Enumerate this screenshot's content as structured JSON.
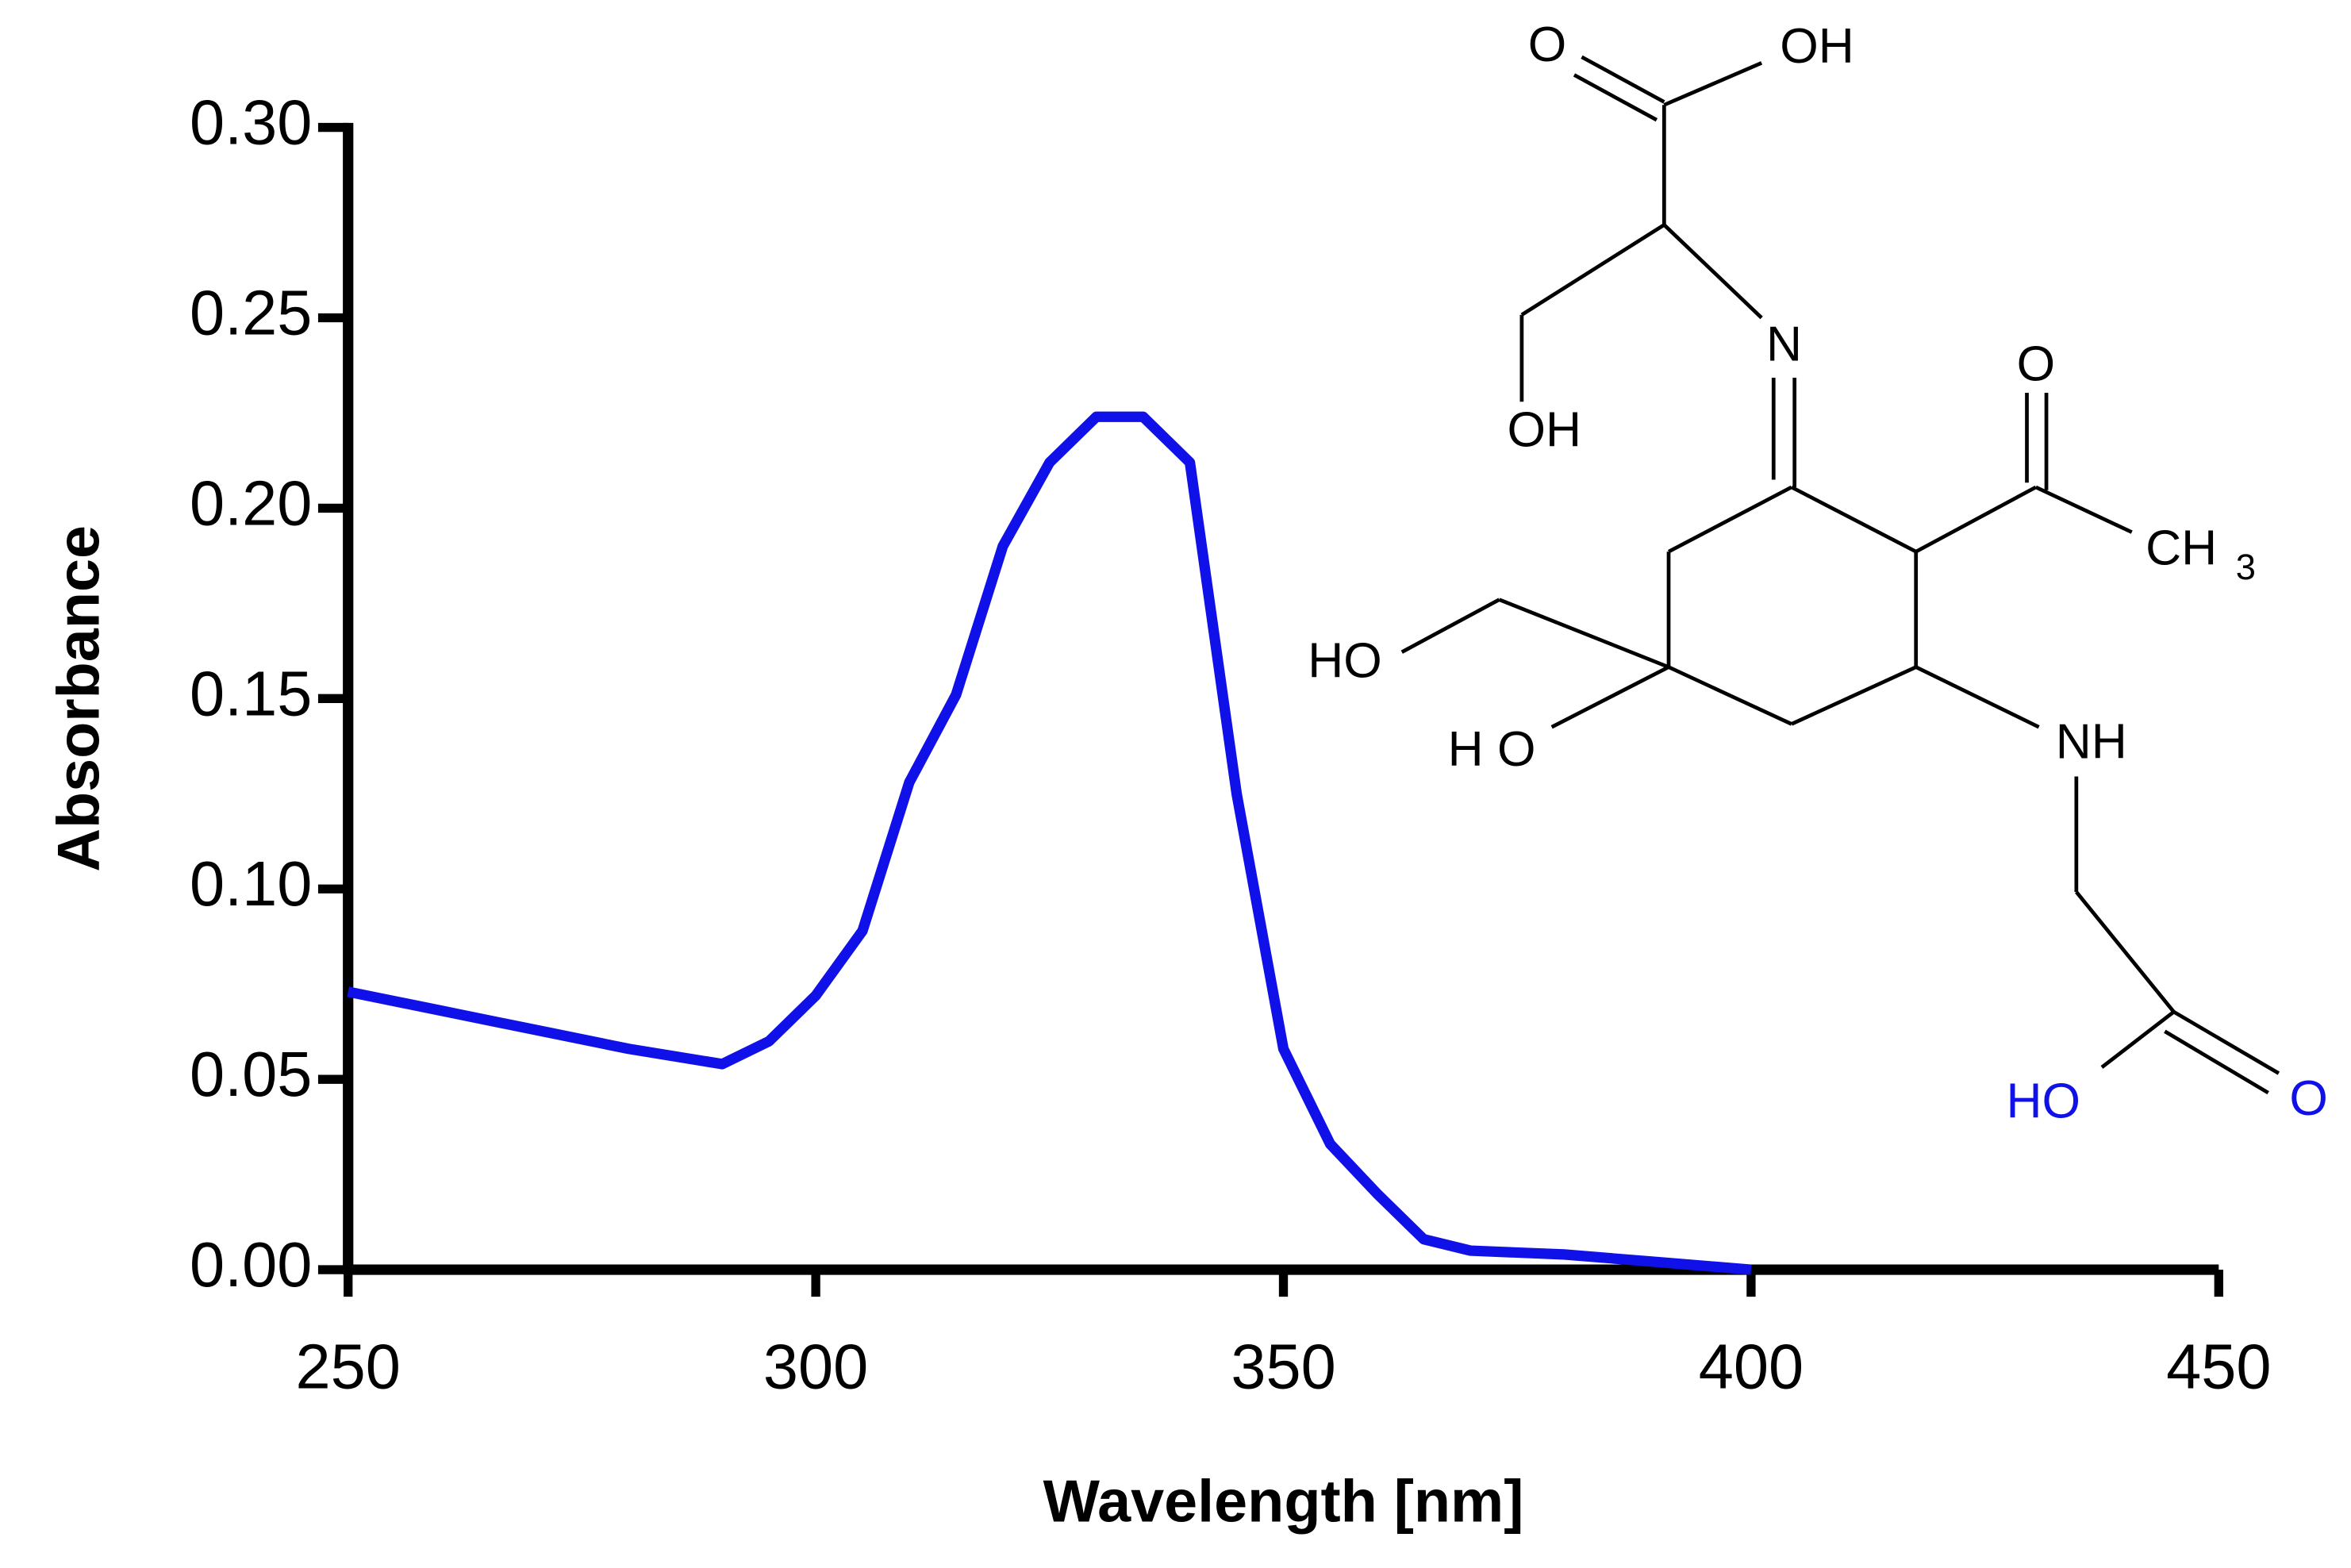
{
  "chart_data": {
    "type": "line",
    "x_label": "Wavelength [nm]",
    "y_label": "Absorbance",
    "xlim": [
      250,
      450
    ],
    "xticks": [
      250,
      300,
      350,
      400,
      450
    ],
    "ylim": [
      0,
      0.3
    ],
    "yticks": [
      {
        "value": 0,
        "label": "0.00"
      },
      0.05,
      {
        "value": 0.1,
        "label": "0.10"
      },
      0.15,
      {
        "value": 0.2,
        "label": "0.20"
      },
      0.25,
      {
        "value": 0.3,
        "label": "0.30"
      }
    ],
    "x": [
      250,
      260,
      270,
      280,
      290,
      295,
      300,
      305,
      310,
      315,
      320,
      325,
      330,
      335,
      340,
      345,
      350,
      355,
      360,
      365,
      370,
      380,
      390,
      400
    ],
    "series": [
      {
        "color": "#1010e8",
        "values": [
          0.073,
          0.068,
          0.063,
          0.058,
          0.054,
          0.06,
          0.072,
          0.089,
          0.128,
          0.151,
          0.19,
          0.212,
          0.224,
          0.224,
          0.212,
          0.125,
          0.058,
          0.033,
          0.02,
          0.008,
          0.005,
          0.004,
          0.002,
          0
        ]
      }
    ]
  },
  "structure": {
    "labels": [
      "O",
      "OH",
      "N",
      "OH",
      "O",
      "CH",
      "3",
      "HO",
      "H O",
      "NH",
      "HO",
      "O"
    ]
  }
}
